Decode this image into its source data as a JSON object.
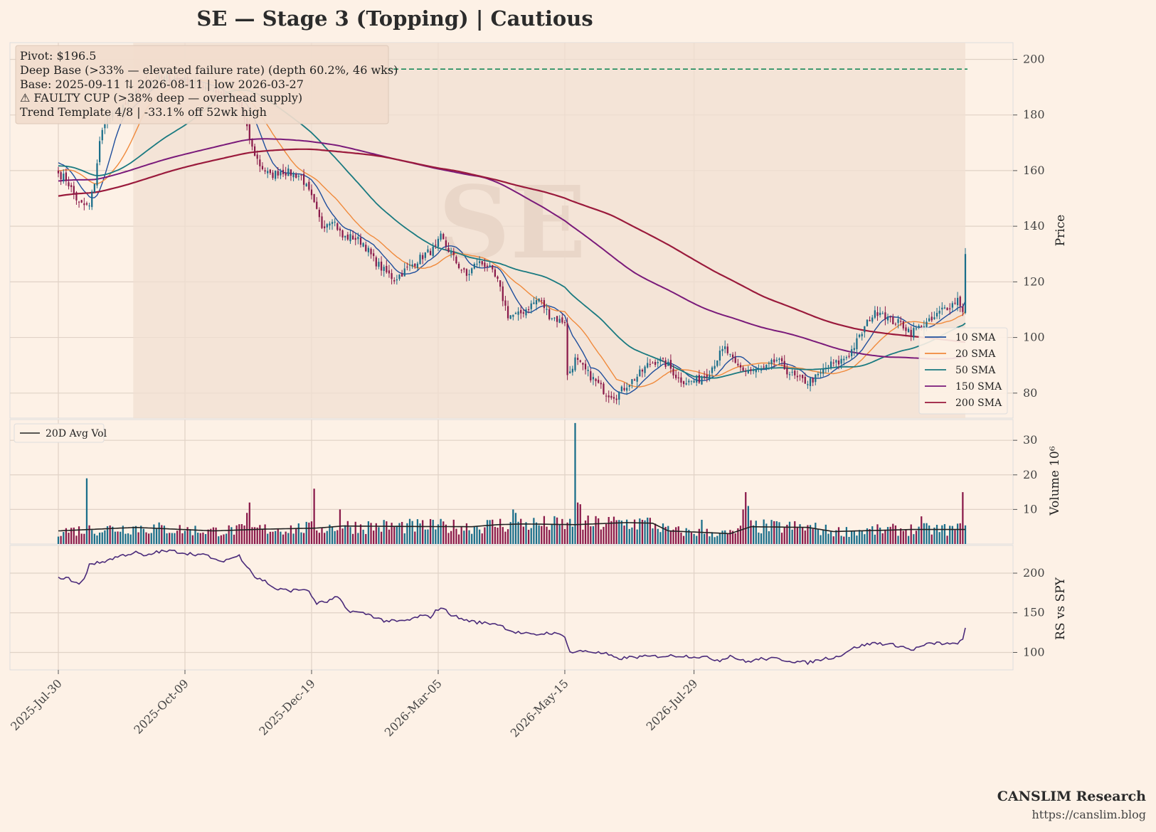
{
  "header": {
    "title": "SE  —  Stage 3 (Topping)  |  Cautious"
  },
  "watermark": "SE",
  "annotation": {
    "lines": [
      "Pivot: $196.5",
      "Deep Base (>33% — elevated failure rate)  (depth 60.2%, 46 wks)",
      "Base: 2025-09-11 ⇅ 2026-08-11  |  low 2026-03-27",
      "⚠ FAULTY CUP (>38% deep — overhead supply)",
      "Trend Template 4/8  |  -33.1% off 52wk high"
    ]
  },
  "footer": {
    "brand": "CANSLIM Research",
    "url": "https://canslim.blog"
  },
  "colors": {
    "background": "#fdf1e6",
    "up_candle": "#1a6e8a",
    "down_candle": "#8a1a4a",
    "sma10": "#1f4e9c",
    "sma20": "#f08a3c",
    "sma50": "#1a7a80",
    "sma150": "#7a1a7a",
    "sma200": "#9a1a3c",
    "pivot": "#1a8a5a",
    "avg_vol": "#222222",
    "rs": "#4a2a7a",
    "base_shade": "#f0dfd2"
  },
  "chart_data": {
    "type": "candlestick",
    "x_ticks": [
      "2025-Jul-30",
      "2025-Oct-09",
      "2025-Dec-19",
      "2026-Mar-05",
      "2026-May-15",
      "2026-Jul-29"
    ],
    "price_panel": {
      "ylabel": "Price",
      "y_ticks": [
        80,
        100,
        120,
        140,
        160,
        180,
        200
      ],
      "ylim": [
        71,
        206
      ],
      "pivot_price": 196.5,
      "base_period": [
        "2025-09-11",
        "2026-08-11"
      ],
      "close_anchors": [
        [
          0,
          159
        ],
        [
          3,
          157
        ],
        [
          8,
          148
        ],
        [
          12,
          147
        ],
        [
          14,
          156
        ],
        [
          16,
          170
        ],
        [
          18,
          178
        ],
        [
          22,
          180
        ],
        [
          27,
          184
        ],
        [
          32,
          190
        ],
        [
          38,
          193
        ],
        [
          45,
          193
        ],
        [
          52,
          192
        ],
        [
          58,
          190
        ],
        [
          62,
          188
        ],
        [
          67,
          185
        ],
        [
          70,
          185
        ],
        [
          72,
          178
        ],
        [
          75,
          168
        ],
        [
          78,
          162
        ],
        [
          82,
          158
        ],
        [
          86,
          160
        ],
        [
          90,
          159
        ],
        [
          94,
          158
        ],
        [
          98,
          150
        ],
        [
          102,
          140
        ],
        [
          106,
          143
        ],
        [
          110,
          136
        ],
        [
          114,
          136
        ],
        [
          118,
          134
        ],
        [
          122,
          128
        ],
        [
          126,
          124
        ],
        [
          130,
          121
        ],
        [
          134,
          124
        ],
        [
          138,
          127
        ],
        [
          142,
          130
        ],
        [
          146,
          132
        ],
        [
          148,
          136
        ],
        [
          150,
          133
        ],
        [
          154,
          127
        ],
        [
          158,
          122
        ],
        [
          162,
          127
        ],
        [
          166,
          126
        ],
        [
          170,
          120
        ],
        [
          174,
          108
        ],
        [
          178,
          108
        ],
        [
          182,
          111
        ],
        [
          186,
          114
        ],
        [
          190,
          108
        ],
        [
          194,
          106
        ],
        [
          196,
          106
        ],
        [
          197,
          86
        ],
        [
          200,
          92
        ],
        [
          204,
          88
        ],
        [
          208,
          84
        ],
        [
          212,
          80
        ],
        [
          216,
          79
        ],
        [
          220,
          83
        ],
        [
          224,
          86
        ],
        [
          228,
          90
        ],
        [
          232,
          92
        ],
        [
          236,
          90
        ],
        [
          240,
          85
        ],
        [
          244,
          84
        ],
        [
          248,
          85
        ],
        [
          252,
          88
        ],
        [
          256,
          94
        ],
        [
          258,
          96
        ],
        [
          262,
          90
        ],
        [
          266,
          88
        ],
        [
          270,
          88
        ],
        [
          274,
          89
        ],
        [
          278,
          92
        ],
        [
          282,
          88
        ],
        [
          286,
          85
        ],
        [
          290,
          84
        ],
        [
          294,
          86
        ],
        [
          298,
          90
        ],
        [
          302,
          91
        ],
        [
          306,
          94
        ],
        [
          310,
          100
        ],
        [
          314,
          107
        ],
        [
          318,
          110
        ],
        [
          322,
          106
        ],
        [
          326,
          105
        ],
        [
          330,
          102
        ],
        [
          334,
          104
        ],
        [
          338,
          106
        ],
        [
          342,
          110
        ],
        [
          346,
          112
        ],
        [
          348,
          114
        ],
        [
          350,
          110
        ],
        [
          351,
          130
        ]
      ],
      "last_index": 351,
      "series": [
        {
          "name": "10 SMA"
        },
        {
          "name": "20 SMA"
        },
        {
          "name": "50 SMA"
        },
        {
          "name": "150 SMA"
        },
        {
          "name": "200 SMA"
        }
      ]
    },
    "volume_panel": {
      "ylabel": "Volume  10⁶",
      "y_ticks": [
        10,
        20,
        30
      ],
      "ylim": [
        0,
        36
      ],
      "spikes": [
        [
          11,
          19
        ],
        [
          74,
          12
        ],
        [
          73,
          9
        ],
        [
          99,
          16
        ],
        [
          109,
          10
        ],
        [
          145,
          7
        ],
        [
          176,
          10
        ],
        [
          177,
          9
        ],
        [
          200,
          35
        ],
        [
          201,
          12
        ],
        [
          202,
          11.5
        ],
        [
          226,
          7
        ],
        [
          249,
          7
        ],
        [
          265,
          10
        ],
        [
          266,
          15
        ],
        [
          267,
          11
        ],
        [
          334,
          8
        ],
        [
          350,
          15
        ],
        [
          349,
          6
        ]
      ],
      "avg_anchors": [
        [
          0,
          3.8
        ],
        [
          30,
          4.8
        ],
        [
          60,
          3.8
        ],
        [
          80,
          4.3
        ],
        [
          100,
          4.6
        ],
        [
          110,
          5.2
        ],
        [
          130,
          5.1
        ],
        [
          160,
          5.0
        ],
        [
          170,
          5.6
        ],
        [
          180,
          5.8
        ],
        [
          200,
          5.6
        ],
        [
          220,
          6.2
        ],
        [
          230,
          6.0
        ],
        [
          236,
          3.8
        ],
        [
          260,
          3.0
        ],
        [
          268,
          5.0
        ],
        [
          290,
          4.8
        ],
        [
          300,
          3.6
        ],
        [
          330,
          4.2
        ],
        [
          351,
          4.2
        ]
      ],
      "series": [
        {
          "name": "20D Avg Vol"
        }
      ]
    },
    "rs_panel": {
      "ylabel": "RS vs SPY",
      "y_ticks": [
        100,
        150,
        200
      ],
      "ylim": [
        78,
        235
      ],
      "anchors": [
        [
          0,
          195
        ],
        [
          4,
          193
        ],
        [
          8,
          186
        ],
        [
          10,
          192
        ],
        [
          12,
          212
        ],
        [
          16,
          213
        ],
        [
          24,
          222
        ],
        [
          30,
          226
        ],
        [
          34,
          221
        ],
        [
          38,
          227
        ],
        [
          44,
          228
        ],
        [
          50,
          225
        ],
        [
          58,
          222
        ],
        [
          62,
          214
        ],
        [
          68,
          220
        ],
        [
          70,
          222
        ],
        [
          72,
          213
        ],
        [
          74,
          206
        ],
        [
          76,
          195
        ],
        [
          80,
          190
        ],
        [
          84,
          180
        ],
        [
          90,
          178
        ],
        [
          96,
          180
        ],
        [
          100,
          162
        ],
        [
          104,
          164
        ],
        [
          108,
          170
        ],
        [
          112,
          153
        ],
        [
          120,
          148
        ],
        [
          126,
          140
        ],
        [
          132,
          139
        ],
        [
          136,
          141
        ],
        [
          140,
          146
        ],
        [
          144,
          145
        ],
        [
          146,
          152
        ],
        [
          148,
          157
        ],
        [
          152,
          148
        ],
        [
          156,
          142
        ],
        [
          162,
          138
        ],
        [
          170,
          136
        ],
        [
          176,
          126
        ],
        [
          184,
          122
        ],
        [
          190,
          125
        ],
        [
          196,
          121
        ],
        [
          198,
          100
        ],
        [
          204,
          102
        ],
        [
          212,
          98
        ],
        [
          216,
          92
        ],
        [
          222,
          94
        ],
        [
          230,
          95
        ],
        [
          240,
          96
        ],
        [
          250,
          94
        ],
        [
          256,
          90
        ],
        [
          260,
          96
        ],
        [
          266,
          88
        ],
        [
          272,
          92
        ],
        [
          278,
          92
        ],
        [
          284,
          89
        ],
        [
          290,
          87
        ],
        [
          296,
          92
        ],
        [
          302,
          95
        ],
        [
          306,
          103
        ],
        [
          310,
          108
        ],
        [
          316,
          112
        ],
        [
          322,
          110
        ],
        [
          326,
          108
        ],
        [
          330,
          103
        ],
        [
          336,
          110
        ],
        [
          340,
          112
        ],
        [
          346,
          110
        ],
        [
          350,
          115
        ],
        [
          351,
          131
        ]
      ]
    }
  }
}
